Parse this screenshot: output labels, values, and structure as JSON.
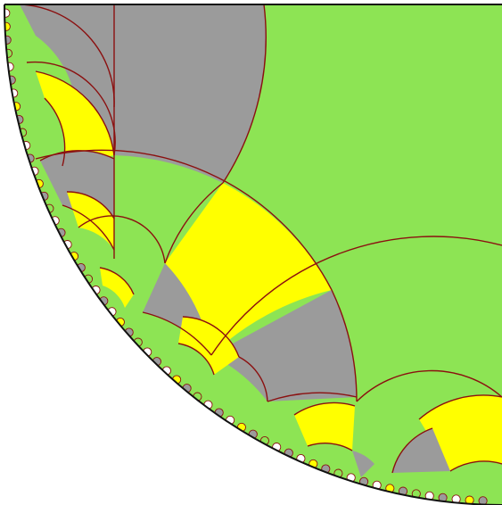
{
  "figure": {
    "kind": "hyperbolic-tiling-quadrant",
    "colors": {
      "green": "#8de454",
      "gray": "#9b9b9b",
      "yellow": "#ffff00",
      "white": "#ffffff",
      "line": "#8b1010",
      "boundary": "#111111"
    }
  }
}
